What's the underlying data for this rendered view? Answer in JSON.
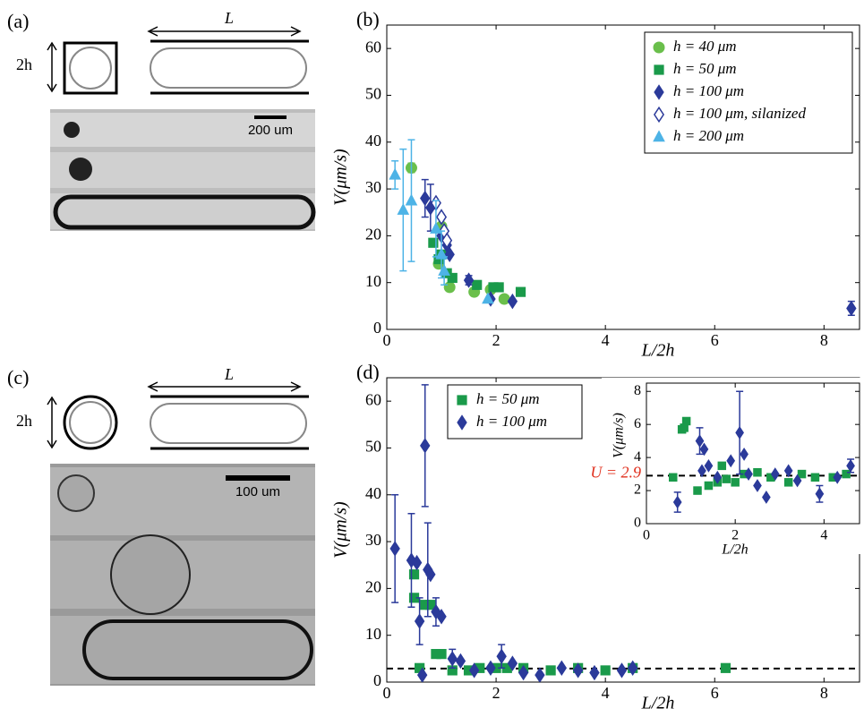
{
  "diagrams": [
    {
      "label": "(a)",
      "height_label": "2h",
      "length_label": "L",
      "scale_bar_label": "200 um"
    },
    {
      "label": "(c)",
      "height_label": "2h",
      "length_label": "L",
      "scale_bar_label": "100 um"
    }
  ],
  "chart_data": [
    {
      "type": "scatter",
      "panel_label": "(b)",
      "xlabel": "L/2h",
      "ylabel": "V(μm/s)",
      "xlim": [
        0,
        8.65
      ],
      "ylim": [
        0,
        65
      ],
      "xticks": [
        0,
        2,
        4,
        6,
        8
      ],
      "yticks": [
        0,
        10,
        20,
        30,
        40,
        50,
        60
      ],
      "legend": "upper right",
      "series": [
        {
          "name": "h = 40 μm",
          "color": "#6abf4b",
          "marker": "circle",
          "x": [
            0.45,
            0.95,
            1.0,
            1.15,
            1.6,
            1.9,
            2.15
          ],
          "values": [
            34.5,
            14,
            22,
            9,
            8,
            8.5,
            6.5
          ],
          "errors": [
            1,
            null,
            null,
            null,
            null,
            null,
            null
          ]
        },
        {
          "name": "h = 50 μm",
          "color": "#1a9a4a",
          "marker": "square",
          "x": [
            0.85,
            0.95,
            1.0,
            1.1,
            1.2,
            1.65,
            1.95,
            2.05,
            2.45
          ],
          "values": [
            18.5,
            15,
            16,
            12,
            11,
            9.5,
            9,
            9,
            8
          ]
        },
        {
          "name": "h = 100 μm",
          "color": "#2b3a9a",
          "marker": "diamond",
          "x": [
            0.7,
            0.8,
            1.0,
            1.1,
            1.15,
            1.5,
            1.9,
            2.3,
            8.5
          ],
          "values": [
            28,
            26,
            20,
            18,
            16,
            10.5,
            6.5,
            6,
            4.5
          ],
          "errors": [
            4,
            5,
            null,
            null,
            null,
            1,
            null,
            null,
            1.5
          ]
        },
        {
          "name": "h = 100 μm, silanized",
          "color": "#2b3a9a",
          "marker": "diamond-open",
          "x": [
            0.9,
            1.0,
            1.05,
            1.1
          ],
          "values": [
            27,
            24,
            21,
            19
          ]
        },
        {
          "name": "h = 200 μm",
          "color": "#4db3e6",
          "marker": "triangle",
          "x": [
            0.15,
            0.3,
            0.45,
            0.9,
            1.0,
            1.05,
            1.85
          ],
          "values": [
            33,
            25.5,
            27.5,
            21.5,
            16,
            12.5,
            6.5
          ],
          "errors": [
            3,
            13,
            13,
            6,
            5,
            3,
            null
          ]
        }
      ]
    },
    {
      "type": "scatter",
      "panel_label": "(d)",
      "xlabel": "L/2h",
      "ylabel": "V(μm/s)",
      "xlim": [
        0,
        8.65
      ],
      "ylim": [
        0,
        65
      ],
      "xticks": [
        0,
        2,
        4,
        6,
        8
      ],
      "yticks": [
        0,
        10,
        20,
        30,
        40,
        50,
        60
      ],
      "legend": "upper left",
      "hline": 2.9,
      "series": [
        {
          "name": "h = 50 μm",
          "color": "#1a9a4a",
          "marker": "square",
          "x": [
            0.5,
            0.5,
            0.6,
            0.7,
            0.8,
            0.9,
            1.0,
            1.2,
            1.5,
            1.7,
            2.0,
            2.2,
            2.5,
            3.0,
            3.5,
            4.0,
            4.5,
            6.2
          ],
          "values": [
            23,
            18,
            3,
            16.5,
            16.5,
            6,
            6,
            2.5,
            2.5,
            3,
            3,
            3,
            3,
            2.5,
            3,
            2.5,
            3,
            3
          ]
        },
        {
          "name": "h = 100 μm",
          "color": "#2b3a9a",
          "marker": "diamond",
          "x": [
            0.15,
            0.45,
            0.55,
            0.6,
            0.65,
            0.7,
            0.75,
            0.8,
            0.9,
            1.0,
            1.2,
            1.35,
            1.6,
            1.9,
            2.1,
            2.3,
            2.5,
            2.8,
            3.2,
            3.5,
            3.8,
            4.3,
            4.5
          ],
          "values": [
            28.5,
            26,
            25.5,
            13,
            1.5,
            50.5,
            24,
            23,
            15,
            14,
            5,
            4.5,
            2.5,
            3,
            5.5,
            4,
            2,
            1.5,
            3,
            2.5,
            2,
            2.5,
            3
          ],
          "errors": [
            11.5,
            10,
            null,
            5,
            null,
            13,
            10,
            null,
            3,
            null,
            2,
            null,
            null,
            null,
            2.5,
            null,
            null,
            null,
            null,
            null,
            null,
            null,
            null
          ]
        }
      ]
    },
    {
      "type": "scatter",
      "xlabel": "L/2h",
      "ylabel": "V(μm/s)",
      "xlim": [
        0,
        4.8
      ],
      "ylim": [
        0,
        8.5
      ],
      "xticks": [
        0,
        2,
        4
      ],
      "yticks": [
        0,
        2,
        4,
        6,
        8
      ],
      "hline": 2.9,
      "hline_label": "U = 2.9",
      "hline_label_color": "#e0301e",
      "series": [
        {
          "color": "#1a9a4a",
          "marker": "square",
          "x": [
            0.6,
            0.8,
            0.85,
            0.9,
            1.15,
            1.4,
            1.6,
            1.7,
            1.8,
            2.0,
            2.2,
            2.5,
            2.8,
            3.2,
            3.5,
            3.8,
            4.2,
            4.5
          ],
          "values": [
            2.8,
            5.7,
            5.8,
            6.2,
            2.0,
            2.3,
            2.5,
            3.5,
            2.7,
            2.5,
            3.0,
            3.1,
            2.8,
            2.5,
            3.0,
            2.8,
            2.8,
            3.0
          ]
        },
        {
          "color": "#2b3a9a",
          "marker": "diamond",
          "x": [
            0.7,
            1.2,
            1.25,
            1.3,
            1.4,
            1.6,
            1.9,
            2.1,
            2.2,
            2.3,
            2.5,
            2.7,
            2.9,
            3.2,
            3.4,
            3.9,
            4.3,
            4.6
          ],
          "values": [
            1.3,
            5.0,
            3.2,
            4.5,
            3.5,
            2.8,
            3.8,
            5.5,
            4.2,
            3.0,
            2.3,
            1.6,
            3.0,
            3.2,
            2.6,
            1.8,
            2.8,
            3.5
          ],
          "errors": [
            0.6,
            0.8,
            null,
            null,
            null,
            null,
            null,
            2.5,
            null,
            null,
            null,
            null,
            null,
            null,
            null,
            0.5,
            null,
            0.4
          ]
        }
      ]
    }
  ]
}
